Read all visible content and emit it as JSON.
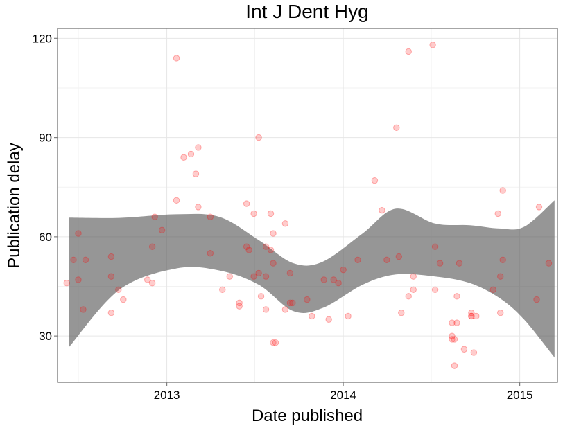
{
  "chart_data": {
    "type": "scatter",
    "title": "Int J Dent Hyg",
    "xlabel": "Date published",
    "ylabel": "Publication delay",
    "x_ticks": [
      "2013",
      "2014",
      "2015"
    ],
    "y_ticks": [
      "30",
      "60",
      "90",
      "120"
    ],
    "xlim": [
      "2012-05-20",
      "2015-03-20"
    ],
    "ylim": [
      16,
      123
    ],
    "grid": true,
    "point_color": "#ff0000",
    "band_color": "#595959",
    "points": [
      {
        "x": "2012-06-08",
        "y": 46
      },
      {
        "x": "2012-06-22",
        "y": 53
      },
      {
        "x": "2012-07-02",
        "y": 61
      },
      {
        "x": "2012-07-02",
        "y": 47
      },
      {
        "x": "2012-07-12",
        "y": 38
      },
      {
        "x": "2012-07-17",
        "y": 53
      },
      {
        "x": "2012-09-08",
        "y": 54
      },
      {
        "x": "2012-09-08",
        "y": 48
      },
      {
        "x": "2012-09-08",
        "y": 37
      },
      {
        "x": "2012-09-23",
        "y": 44
      },
      {
        "x": "2012-10-03",
        "y": 41
      },
      {
        "x": "2012-11-22",
        "y": 47
      },
      {
        "x": "2012-12-02",
        "y": 46
      },
      {
        "x": "2012-12-02",
        "y": 57
      },
      {
        "x": "2012-12-07",
        "y": 66
      },
      {
        "x": "2012-12-22",
        "y": 62
      },
      {
        "x": "2013-01-21",
        "y": 114
      },
      {
        "x": "2013-01-21",
        "y": 71
      },
      {
        "x": "2013-02-05",
        "y": 84
      },
      {
        "x": "2013-02-20",
        "y": 85
      },
      {
        "x": "2013-03-02",
        "y": 79
      },
      {
        "x": "2013-03-07",
        "y": 87
      },
      {
        "x": "2013-03-07",
        "y": 69
      },
      {
        "x": "2013-04-01",
        "y": 66
      },
      {
        "x": "2013-04-01",
        "y": 55
      },
      {
        "x": "2013-04-26",
        "y": 44
      },
      {
        "x": "2013-05-11",
        "y": 48
      },
      {
        "x": "2013-05-31",
        "y": 40
      },
      {
        "x": "2013-05-31",
        "y": 39
      },
      {
        "x": "2013-06-15",
        "y": 57
      },
      {
        "x": "2013-06-15",
        "y": 70
      },
      {
        "x": "2013-06-20",
        "y": 56
      },
      {
        "x": "2013-06-30",
        "y": 67
      },
      {
        "x": "2013-06-30",
        "y": 48
      },
      {
        "x": "2013-07-10",
        "y": 49
      },
      {
        "x": "2013-07-10",
        "y": 90
      },
      {
        "x": "2013-07-15",
        "y": 42
      },
      {
        "x": "2013-07-25",
        "y": 48
      },
      {
        "x": "2013-07-25",
        "y": 38
      },
      {
        "x": "2013-07-25",
        "y": 57
      },
      {
        "x": "2013-08-04",
        "y": 56
      },
      {
        "x": "2013-08-04",
        "y": 67
      },
      {
        "x": "2013-08-09",
        "y": 61
      },
      {
        "x": "2013-08-09",
        "y": 52
      },
      {
        "x": "2013-08-09",
        "y": 28
      },
      {
        "x": "2013-08-14",
        "y": 28
      },
      {
        "x": "2013-09-03",
        "y": 38
      },
      {
        "x": "2013-09-03",
        "y": 64
      },
      {
        "x": "2013-09-13",
        "y": 49
      },
      {
        "x": "2013-09-13",
        "y": 40
      },
      {
        "x": "2013-09-18",
        "y": 40
      },
      {
        "x": "2013-10-18",
        "y": 41
      },
      {
        "x": "2013-10-28",
        "y": 36
      },
      {
        "x": "2013-11-22",
        "y": 47
      },
      {
        "x": "2013-12-02",
        "y": 35
      },
      {
        "x": "2013-12-12",
        "y": 47
      },
      {
        "x": "2013-12-22",
        "y": 46
      },
      {
        "x": "2014-01-01",
        "y": 50
      },
      {
        "x": "2014-01-11",
        "y": 36
      },
      {
        "x": "2014-01-31",
        "y": 53
      },
      {
        "x": "2014-03-07",
        "y": 77
      },
      {
        "x": "2014-03-22",
        "y": 68
      },
      {
        "x": "2014-04-01",
        "y": 53
      },
      {
        "x": "2014-04-21",
        "y": 93
      },
      {
        "x": "2014-04-26",
        "y": 54
      },
      {
        "x": "2014-05-01",
        "y": 37
      },
      {
        "x": "2014-05-16",
        "y": 116
      },
      {
        "x": "2014-05-16",
        "y": 42
      },
      {
        "x": "2014-05-26",
        "y": 48
      },
      {
        "x": "2014-05-26",
        "y": 44
      },
      {
        "x": "2014-07-05",
        "y": 118
      },
      {
        "x": "2014-07-10",
        "y": 57
      },
      {
        "x": "2014-07-10",
        "y": 44
      },
      {
        "x": "2014-07-20",
        "y": 52
      },
      {
        "x": "2014-08-14",
        "y": 34
      },
      {
        "x": "2014-08-14",
        "y": 30
      },
      {
        "x": "2014-08-14",
        "y": 29
      },
      {
        "x": "2014-08-19",
        "y": 29
      },
      {
        "x": "2014-08-19",
        "y": 21
      },
      {
        "x": "2014-08-24",
        "y": 42
      },
      {
        "x": "2014-08-24",
        "y": 34
      },
      {
        "x": "2014-08-29",
        "y": 52
      },
      {
        "x": "2014-09-08",
        "y": 26
      },
      {
        "x": "2014-09-23",
        "y": 36
      },
      {
        "x": "2014-09-23",
        "y": 37
      },
      {
        "x": "2014-09-23",
        "y": 36
      },
      {
        "x": "2014-09-28",
        "y": 25
      },
      {
        "x": "2014-10-03",
        "y": 36
      },
      {
        "x": "2014-11-07",
        "y": 44
      },
      {
        "x": "2014-11-17",
        "y": 67
      },
      {
        "x": "2014-11-22",
        "y": 48
      },
      {
        "x": "2014-11-22",
        "y": 37
      },
      {
        "x": "2014-11-27",
        "y": 53
      },
      {
        "x": "2014-11-27",
        "y": 74
      },
      {
        "x": "2015-02-05",
        "y": 41
      },
      {
        "x": "2015-02-10",
        "y": 69
      },
      {
        "x": "2015-03-02",
        "y": 52
      }
    ],
    "band": {
      "x": [
        "2012-06-12",
        "2012-09-25",
        "2013-01-20",
        "2013-04-20",
        "2013-07-10",
        "2013-09-20",
        "2013-11-20",
        "2014-02-10",
        "2014-04-20",
        "2014-07-10",
        "2014-09-20",
        "2014-11-20",
        "2015-01-10",
        "2015-03-14"
      ],
      "upper": [
        65.8,
        65.7,
        66.8,
        66.0,
        59.0,
        52.0,
        52.5,
        61.0,
        68.5,
        64.0,
        63.5,
        62.5,
        63.0,
        71.0
      ],
      "lower": [
        26.5,
        44.0,
        50.4,
        49.8,
        45.5,
        37.5,
        38.5,
        45.5,
        48.6,
        48.0,
        46.0,
        41.5,
        35.0,
        23.5
      ]
    }
  }
}
